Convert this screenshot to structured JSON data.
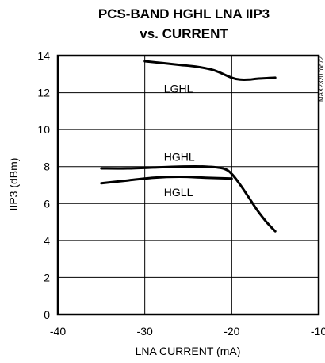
{
  "chart_data": {
    "type": "line",
    "title": [
      "PCS-BAND HGHL LNA IIP3",
      "vs. CURRENT"
    ],
    "xlabel": "LNA CURRENT (mA)",
    "ylabel": "IIP3 (dBm)",
    "xlim": [
      -40,
      -10
    ],
    "ylim": [
      0,
      14
    ],
    "xticks": [
      -40,
      -30,
      -20,
      -10
    ],
    "yticks": [
      0,
      2,
      4,
      6,
      8,
      10,
      12,
      14
    ],
    "xtick_labels": [
      "-40",
      "-30",
      "-20",
      "-10"
    ],
    "ytick_labels": [
      "0",
      "2",
      "4",
      "6",
      "8",
      "10",
      "12",
      "14"
    ],
    "grid": true,
    "watermark": "MAX2320 toc72",
    "series": [
      {
        "name": "LGHL",
        "x": [
          -30,
          -28,
          -26,
          -24,
          -22,
          -20,
          -19,
          -18,
          -17,
          -15
        ],
        "y": [
          13.7,
          13.6,
          13.5,
          13.4,
          13.2,
          12.8,
          12.7,
          12.7,
          12.75,
          12.8
        ]
      },
      {
        "name": "HGHL",
        "x": [
          -35,
          -32,
          -29,
          -26,
          -23,
          -21,
          -20,
          -19,
          -18,
          -17,
          -16,
          -15
        ],
        "y": [
          7.9,
          7.9,
          7.95,
          8.0,
          8.0,
          7.9,
          7.6,
          7.0,
          6.3,
          5.6,
          5.0,
          4.5
        ]
      },
      {
        "name": "HGLL",
        "x": [
          -35,
          -32,
          -29,
          -26,
          -23,
          -20
        ],
        "y": [
          7.1,
          7.25,
          7.4,
          7.45,
          7.4,
          7.35
        ]
      }
    ],
    "label_anchors": {
      "LGHL": [
        -27.8,
        12.0
      ],
      "HGHL": [
        -27.8,
        8.3
      ],
      "HGLL": [
        -27.8,
        6.4
      ]
    }
  }
}
